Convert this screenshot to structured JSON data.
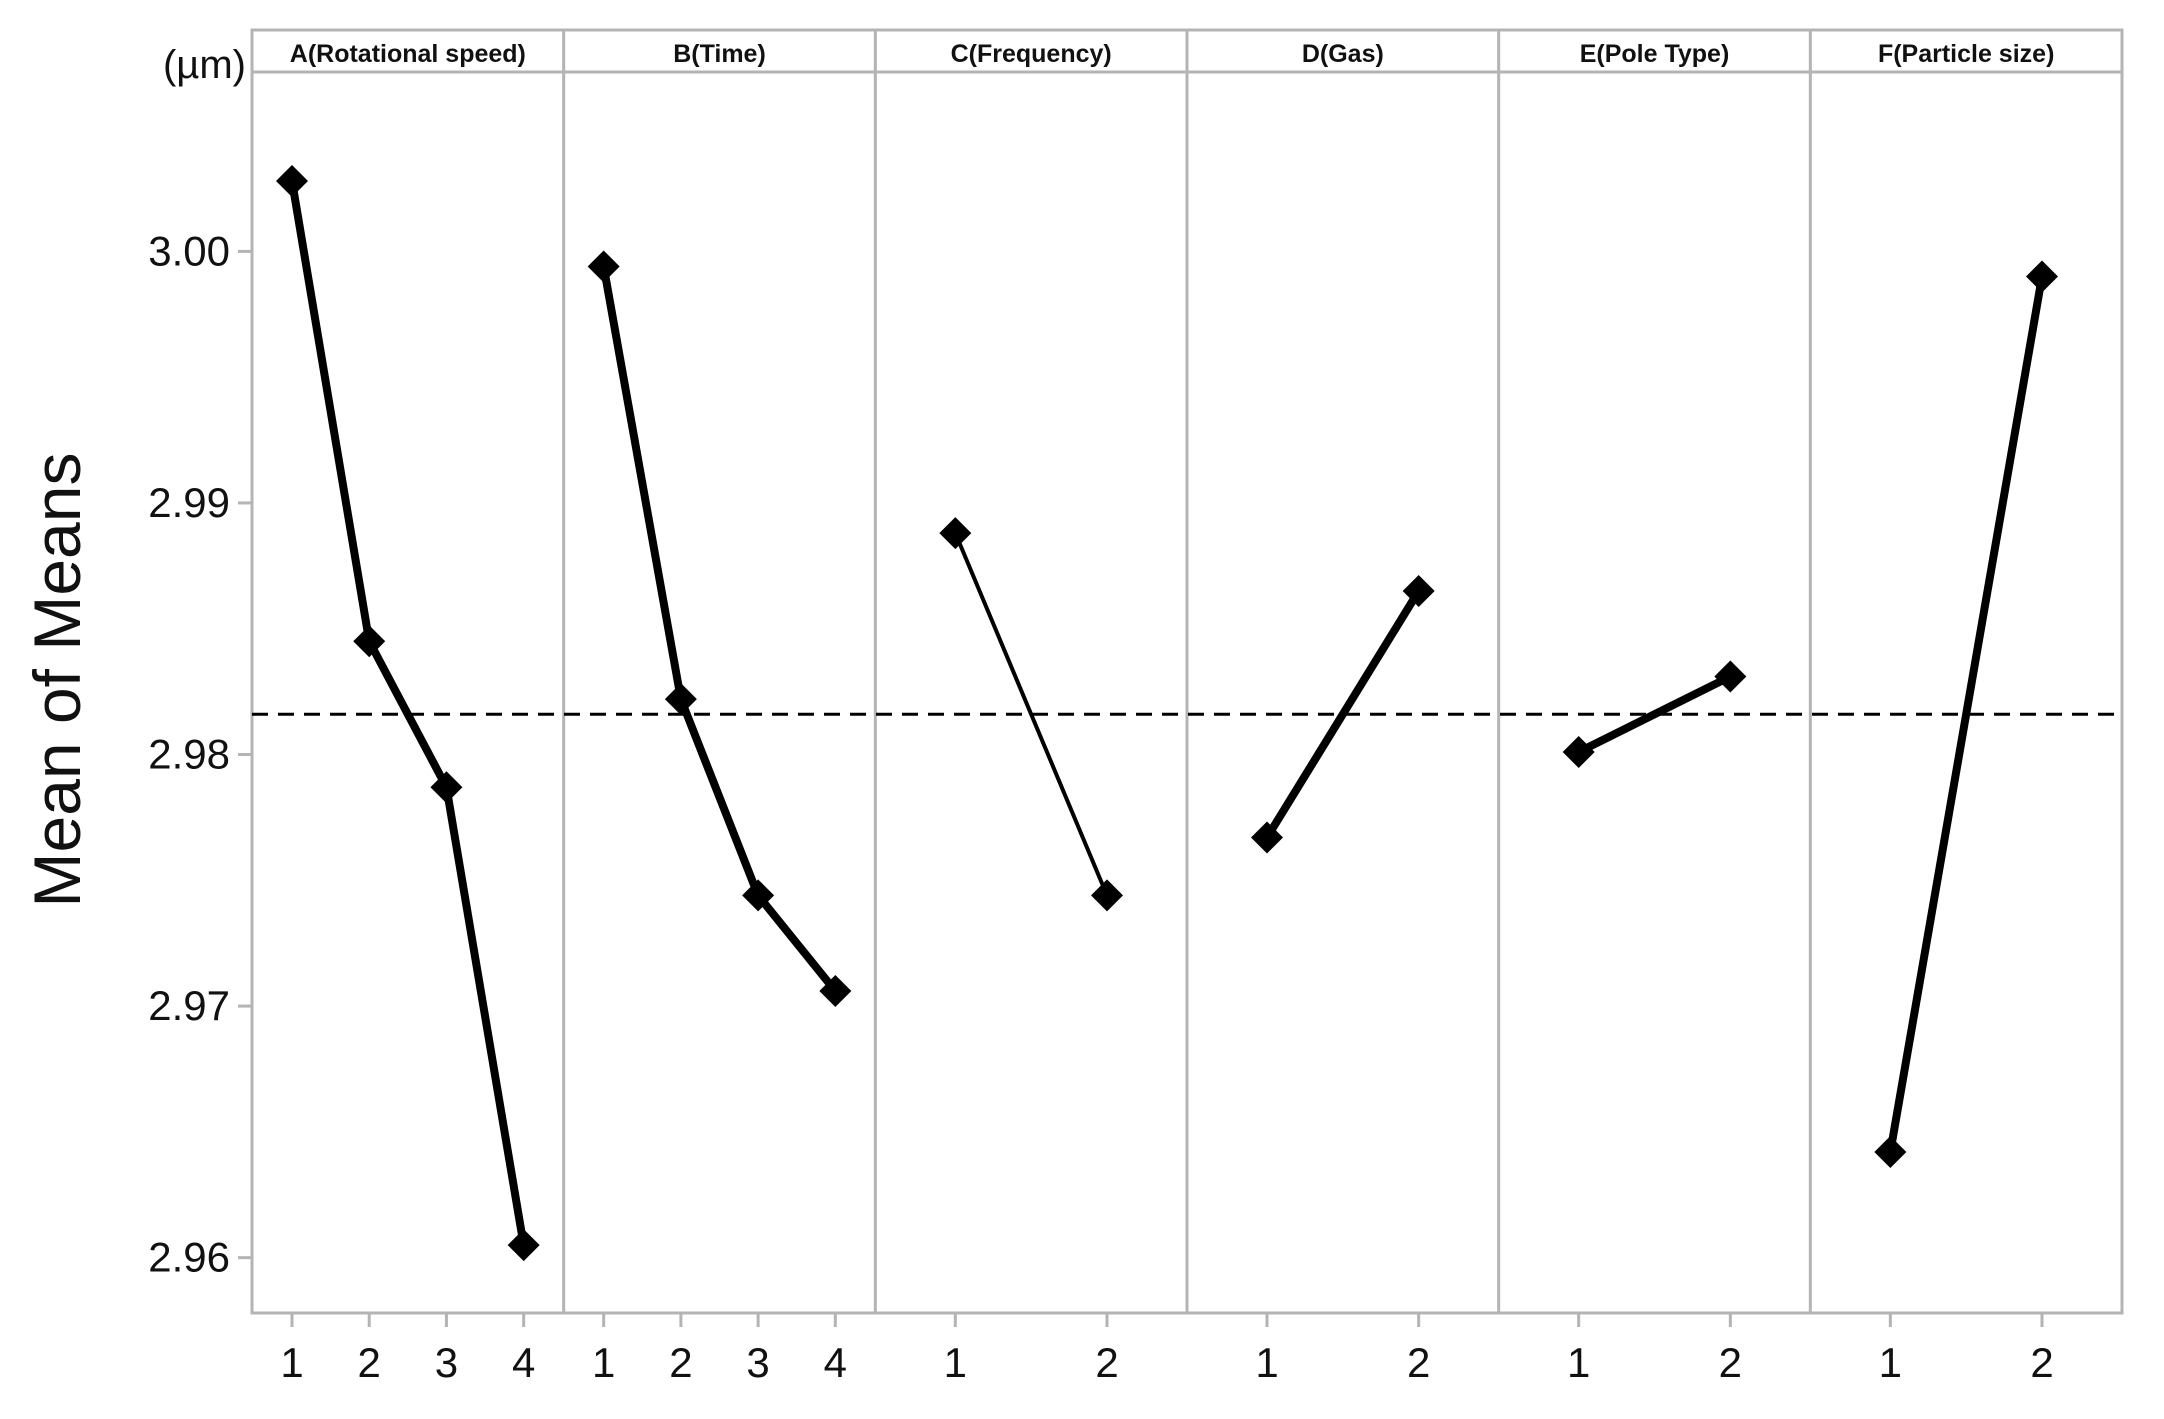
{
  "chart_data": {
    "type": "line",
    "ylabel": "Mean of Means",
    "unit": "(µm)",
    "ylim": [
      2.9578,
      3.0088
    ],
    "yticks": [
      "2.96",
      "2.97",
      "2.98",
      "2.99",
      "3.00"
    ],
    "reference_mean": 2.9816,
    "grid": false,
    "colors": {
      "line": "#000000",
      "frame": "#b4b4b4",
      "reference": "#000000"
    },
    "panels": [
      {
        "title": "A(Rotational speed)",
        "levels": [
          "1",
          "2",
          "3",
          "4"
        ],
        "values": [
          3.0028,
          2.9845,
          2.9787,
          2.9605
        ]
      },
      {
        "title": "B(Time)",
        "levels": [
          "1",
          "2",
          "3",
          "4"
        ],
        "values": [
          2.9994,
          2.9822,
          2.9744,
          2.9706
        ]
      },
      {
        "title": "C(Frequency)",
        "levels": [
          "1",
          "2"
        ],
        "values": [
          2.9888,
          2.9744
        ]
      },
      {
        "title": "D(Gas)",
        "levels": [
          "1",
          "2"
        ],
        "values": [
          2.9767,
          2.9865
        ]
      },
      {
        "title": "E(Pole Type)",
        "levels": [
          "1",
          "2"
        ],
        "values": [
          2.9801,
          2.9831
        ]
      },
      {
        "title": "F(Particle size)",
        "levels": [
          "1",
          "2"
        ],
        "values": [
          2.9642,
          2.999
        ]
      }
    ]
  }
}
